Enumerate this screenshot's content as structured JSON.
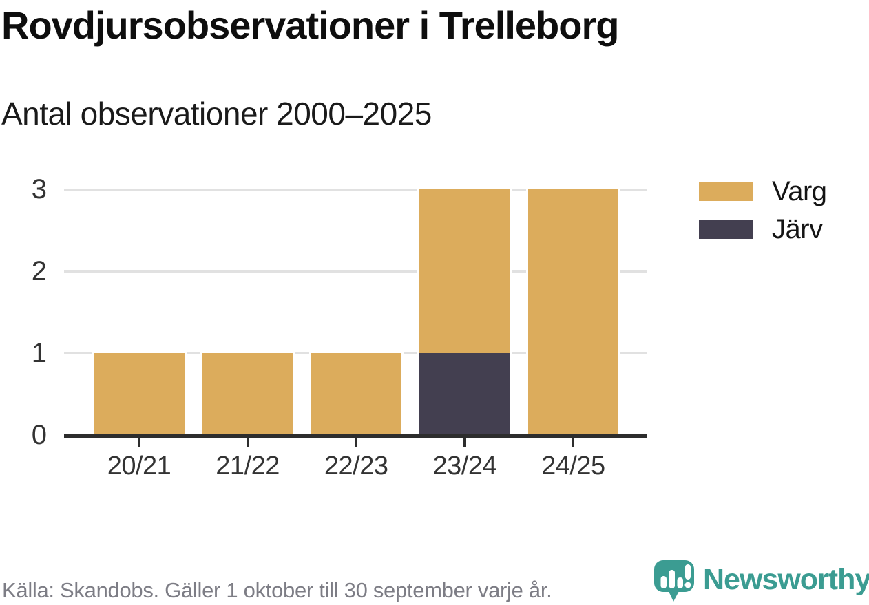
{
  "title": "Rovdjursobservationer i Trelleborg",
  "subtitle": "Antal observationer 2000–2025",
  "chart_data": {
    "type": "bar",
    "stacked": true,
    "categories": [
      "20/21",
      "21/22",
      "22/23",
      "23/24",
      "24/25"
    ],
    "series": [
      {
        "name": "Varg",
        "color": "#dcac5c",
        "values": [
          1,
          1,
          1,
          2,
          3
        ]
      },
      {
        "name": "Järv",
        "color": "#433f50",
        "values": [
          0,
          0,
          0,
          1,
          0
        ]
      }
    ],
    "totals": [
      1,
      1,
      1,
      3,
      3
    ],
    "title": "Rovdjursobservationer i Trelleborg",
    "subtitle": "Antal observationer 2000–2025",
    "xlabel": "",
    "ylabel": "",
    "ylim": [
      0,
      3
    ],
    "yticks": [
      0,
      1,
      2,
      3
    ],
    "grid": true,
    "legend_position": "top-right"
  },
  "legend": [
    {
      "label": "Varg",
      "color": "#dcac5c"
    },
    {
      "label": "Järv",
      "color": "#433f50"
    }
  ],
  "footer": {
    "source": "Källa: Skandobs. Gäller 1 oktober till 30 september varje år.",
    "brand": "Newsworthy"
  },
  "colors": {
    "varg": "#dcac5c",
    "jarv": "#433f50",
    "grid": "#e1e1e1",
    "axis": "#2d2d2d",
    "tick_label": "#333333",
    "title_text": "#0e0e0e",
    "source_text": "#7d7d85",
    "brand_teal": "#3b9c92"
  }
}
